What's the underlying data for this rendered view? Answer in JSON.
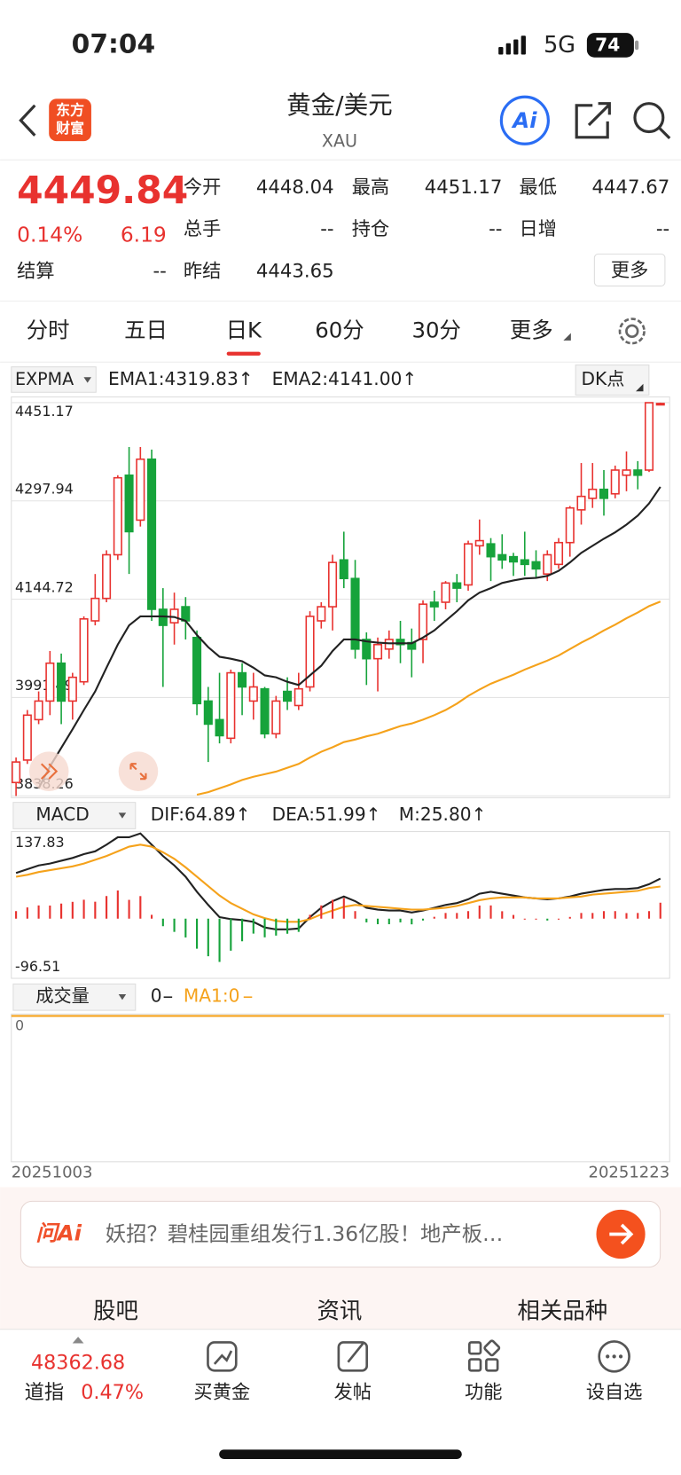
{
  "status_bar": {
    "time": "07:04",
    "network": "5G",
    "battery": "74"
  },
  "header": {
    "logo": [
      "东方",
      "财富"
    ],
    "title": "黄金/美元",
    "subtitle": "XAU",
    "ai": "Ai"
  },
  "quote": {
    "price": "4449.84",
    "change_pct": "0.14%",
    "change": "6.19",
    "fields": [
      [
        "今开",
        "4448.04"
      ],
      [
        "最高",
        "4451.17"
      ],
      [
        "最低",
        "4447.67"
      ],
      [
        "总手",
        "--"
      ],
      [
        "持仓",
        "--"
      ],
      [
        "日增",
        "--"
      ],
      [
        "结算",
        "--"
      ],
      [
        "昨结",
        "4443.65"
      ]
    ],
    "more": "更多"
  },
  "tabs": {
    "items": [
      "分时",
      "五日",
      "日K",
      "60分",
      "30分",
      "更多"
    ],
    "active": 2
  },
  "chart_toolbar": {
    "indicator": "EXPMA",
    "dk": "DK点"
  },
  "chart_data": [
    {
      "type": "candlestick",
      "up_color": "#e8322f",
      "down_color": "#16a33b",
      "ylim": [
        3838.26,
        4451.17
      ],
      "yticks": [
        4451.17,
        4297.94,
        4144.72,
        3991.49,
        3838.26
      ],
      "grid": true,
      "open": [
        3859,
        3894,
        3957,
        3986,
        4045,
        3986,
        4016,
        4111,
        4146,
        4214,
        4338,
        4268,
        4363,
        4129,
        4108,
        4133,
        4085,
        3986,
        3957,
        3928,
        4030,
        3986,
        4005,
        3935,
        4001,
        3979,
        4008,
        4111,
        4133,
        4206,
        4177,
        4082,
        4052,
        4067,
        4082,
        4077,
        4082,
        4140,
        4140,
        4170,
        4167,
        4228,
        4231,
        4214,
        4211,
        4206,
        4203,
        4184,
        4199,
        4233,
        4284,
        4302,
        4316,
        4309,
        4338,
        4346,
        4346,
        4448.04
      ],
      "high": [
        3898,
        3972,
        4001,
        4064,
        4060,
        4030,
        4118,
        4184,
        4221,
        4338,
        4382,
        4382,
        4378,
        4162,
        4155,
        4148,
        4096,
        4008,
        4030,
        4035,
        4045,
        4030,
        4008,
        3994,
        4023,
        4030,
        4126,
        4140,
        4214,
        4250,
        4206,
        4093,
        4085,
        4096,
        4111,
        4099,
        4143,
        4158,
        4173,
        4184,
        4236,
        4269,
        4240,
        4246,
        4217,
        4250,
        4221,
        4221,
        4240,
        4290,
        4357,
        4357,
        4346,
        4353,
        4375,
        4360,
        4451,
        4451.17
      ],
      "low": [
        3838,
        3888,
        3950,
        3964,
        3950,
        3957,
        4011,
        4104,
        4140,
        4206,
        4184,
        4258,
        4111,
        4008,
        4074,
        4082,
        3964,
        3891,
        3920,
        3920,
        3964,
        3957,
        3928,
        3928,
        3972,
        3972,
        4001,
        4099,
        4096,
        4162,
        4052,
        4011,
        4001,
        4052,
        4045,
        4023,
        4045,
        4111,
        4129,
        4140,
        4158,
        4214,
        4173,
        4192,
        4181,
        4181,
        4177,
        4173,
        4192,
        4211,
        4261,
        4287,
        4275,
        4302,
        4313,
        4316,
        4343,
        4447.67
      ],
      "close": [
        3891,
        3964,
        3986,
        4045,
        3986,
        4023,
        4114,
        4146,
        4214,
        4334,
        4250,
        4363,
        4129,
        4104,
        4129,
        4111,
        3982,
        3950,
        3932,
        4030,
        4008,
        4008,
        3935,
        3986,
        3986,
        4005,
        4118,
        4133,
        4202,
        4177,
        4067,
        4052,
        4074,
        4082,
        4074,
        4067,
        4137,
        4133,
        4170,
        4162,
        4231,
        4236,
        4211,
        4206,
        4203,
        4199,
        4192,
        4214,
        4233,
        4287,
        4305,
        4316,
        4302,
        4346,
        4346,
        4338,
        4451,
        4449.84
      ],
      "series": [
        {
          "name": "EMA1",
          "label": "EMA1:4319.83↑",
          "color": "#222222",
          "kind": "line",
          "values": [
            null,
            null,
            3850,
            3884,
            3913,
            3942,
            3972,
            4001,
            4038,
            4074,
            4104,
            4118,
            4118,
            4118,
            4117,
            4111,
            4089,
            4070,
            4055,
            4052,
            4048,
            4038,
            4026,
            4023,
            4016,
            4011,
            4026,
            4041,
            4064,
            4082,
            4082,
            4079,
            4077,
            4076,
            4076,
            4076,
            4085,
            4096,
            4111,
            4126,
            4143,
            4155,
            4162,
            4170,
            4174,
            4177,
            4178,
            4181,
            4189,
            4202,
            4217,
            4228,
            4239,
            4249,
            4261,
            4275,
            4294,
            4319.83
          ]
        },
        {
          "name": "EMA2",
          "label": "EMA2:4141.00↑",
          "color": "#f5a21b",
          "kind": "line",
          "values": [
            null,
            null,
            null,
            null,
            null,
            null,
            null,
            null,
            null,
            null,
            null,
            null,
            null,
            null,
            null,
            null,
            3840,
            3844,
            3850,
            3856,
            3863,
            3868,
            3872,
            3876,
            3882,
            3888,
            3898,
            3907,
            3914,
            3922,
            3926,
            3931,
            3935,
            3941,
            3947,
            3951,
            3957,
            3964,
            3972,
            3982,
            3994,
            4004,
            4013,
            4020,
            4027,
            4035,
            4042,
            4049,
            4057,
            4067,
            4077,
            4086,
            4096,
            4105,
            4115,
            4124,
            4134,
            4141
          ]
        }
      ]
    },
    {
      "type": "macd",
      "indicator": "MACD",
      "up_color": "#e8322f",
      "down_color": "#16a33b",
      "ylim": [
        -96.51,
        137.83
      ],
      "yticks": [
        137.83,
        -96.51
      ],
      "grid": false,
      "series": [
        {
          "name": "DIF",
          "label": "DIF:64.89↑",
          "color": "#222222",
          "kind": "line",
          "values": [
            73.9,
            80.0,
            86.1,
            89.1,
            93.7,
            98.2,
            104.4,
            108.9,
            119.6,
            131.7,
            131.7,
            137.83,
            119.6,
            101.3,
            86.1,
            67.8,
            43.5,
            22.2,
            2.4,
            -0.7,
            -2.2,
            -5.2,
            -14.3,
            -17.4,
            -17.4,
            -15.9,
            2.4,
            17.6,
            28.3,
            35.8,
            28.3,
            17.6,
            14.6,
            13.1,
            13.1,
            10.0,
            13.1,
            17.6,
            22.2,
            25.2,
            31.3,
            40.4,
            43.5,
            40.4,
            37.4,
            34.4,
            32.8,
            31.3,
            32.8,
            35.8,
            40.4,
            43.5,
            46.5,
            48.0,
            48.0,
            49.6,
            55.7,
            64.89
          ]
        },
        {
          "name": "DEA",
          "label": "DEA:51.99↑",
          "color": "#f5a21b",
          "kind": "line",
          "values": [
            67.8,
            70.9,
            75.4,
            78.5,
            81.5,
            84.6,
            89.1,
            95.2,
            101.3,
            108.9,
            116.5,
            119.6,
            116.5,
            107.4,
            96.8,
            83.0,
            67.8,
            52.6,
            37.4,
            25.2,
            16.1,
            6.9,
            0.8,
            -3.7,
            -5.2,
            -5.2,
            -0.7,
            6.9,
            13.1,
            19.1,
            22.2,
            20.6,
            19.1,
            17.6,
            16.1,
            14.6,
            14.6,
            16.1,
            17.6,
            20.6,
            25.2,
            29.8,
            32.8,
            34.4,
            34.4,
            34.4,
            32.8,
            32.8,
            32.8,
            34.4,
            35.8,
            38.9,
            40.4,
            41.9,
            43.5,
            45.0,
            49.6,
            51.99
          ]
        },
        {
          "name": "M",
          "label": "M:25.80↑",
          "color": "#d52fd0",
          "kind": "bar",
          "values": [
            12.2,
            18.2,
            21.4,
            21.2,
            24.4,
            27.2,
            30.6,
            27.4,
            36.6,
            45.6,
            30.4,
            36.5,
            6.2,
            -12.2,
            -21.4,
            -30.4,
            -48.6,
            -60.8,
            -70.0,
            -51.8,
            -36.6,
            -24.2,
            -30.2,
            -27.4,
            -24.4,
            -21.4,
            6.2,
            21.4,
            30.4,
            33.4,
            12.2,
            -6.0,
            -9.0,
            -9.0,
            -6.0,
            -9.2,
            -3.0,
            3.0,
            9.2,
            9.2,
            12.2,
            21.2,
            21.4,
            12.0,
            6.0,
            0,
            0,
            -3.0,
            0,
            2.8,
            9.2,
            9.2,
            12.2,
            12.2,
            9.0,
            9.2,
            12.2,
            25.8
          ]
        }
      ]
    }
  ],
  "volume_pane": {
    "indicator": "成交量",
    "value": "0",
    "ma1": "MA1:0",
    "axis_label": "0"
  },
  "date_range": [
    "20251003",
    "20251223"
  ],
  "ask_bar": {
    "brand": "问Ai",
    "text": "妖招？碧桂园重组发行1.36亿股！地产板…"
  },
  "section_tabs": {
    "items": [
      "股吧",
      "资讯",
      "相关品种"
    ],
    "active": 0
  },
  "bottom_bar": {
    "index_value": "48362.68",
    "index_name": "道指",
    "index_change": "0.47%",
    "items": [
      "买黄金",
      "发帖",
      "功能",
      "设自选"
    ]
  }
}
